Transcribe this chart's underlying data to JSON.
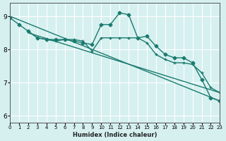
{
  "bg_color": "#d6f0f0",
  "line_color": "#1a7a6e",
  "grid_color": "#ffffff",
  "xlabel": "Humidex (Indice chaleur)",
  "xlim": [
    0,
    23
  ],
  "ylim": [
    5.8,
    9.4
  ],
  "yticks": [
    6,
    7,
    8,
    9
  ],
  "xticks": [
    0,
    1,
    2,
    3,
    4,
    5,
    6,
    7,
    8,
    9,
    10,
    11,
    12,
    13,
    14,
    15,
    16,
    17,
    18,
    19,
    20,
    21,
    22,
    23
  ],
  "line1_x": [
    0,
    1,
    2,
    3,
    4,
    5,
    6,
    7,
    8,
    9,
    10,
    11,
    12,
    13,
    14,
    15,
    16,
    17,
    18,
    19,
    20,
    21,
    22,
    23
  ],
  "line1_y": [
    8.95,
    8.75,
    8.55,
    8.35,
    8.3,
    8.3,
    8.3,
    8.25,
    8.2,
    8.15,
    8.75,
    8.75,
    9.1,
    9.05,
    8.35,
    8.4,
    8.1,
    7.85,
    7.75,
    7.75,
    7.6,
    7.1,
    6.55,
    6.45
  ],
  "line2_x": [
    2,
    3,
    4,
    5,
    6,
    7,
    8,
    9,
    10,
    11,
    12,
    13,
    14,
    15,
    16,
    17,
    18,
    19,
    20,
    21,
    22,
    23
  ],
  "line2_y": [
    8.55,
    8.35,
    8.3,
    8.25,
    8.3,
    8.3,
    8.25,
    7.95,
    8.35,
    8.35,
    8.35,
    8.35,
    8.35,
    8.2,
    7.85,
    7.7,
    7.6,
    7.6,
    7.55,
    7.3,
    6.85,
    6.7
  ],
  "line3_x": [
    0,
    23
  ],
  "line3_y": [
    9.0,
    6.45
  ],
  "line4_x": [
    2,
    23
  ],
  "line4_y": [
    8.5,
    6.7
  ]
}
